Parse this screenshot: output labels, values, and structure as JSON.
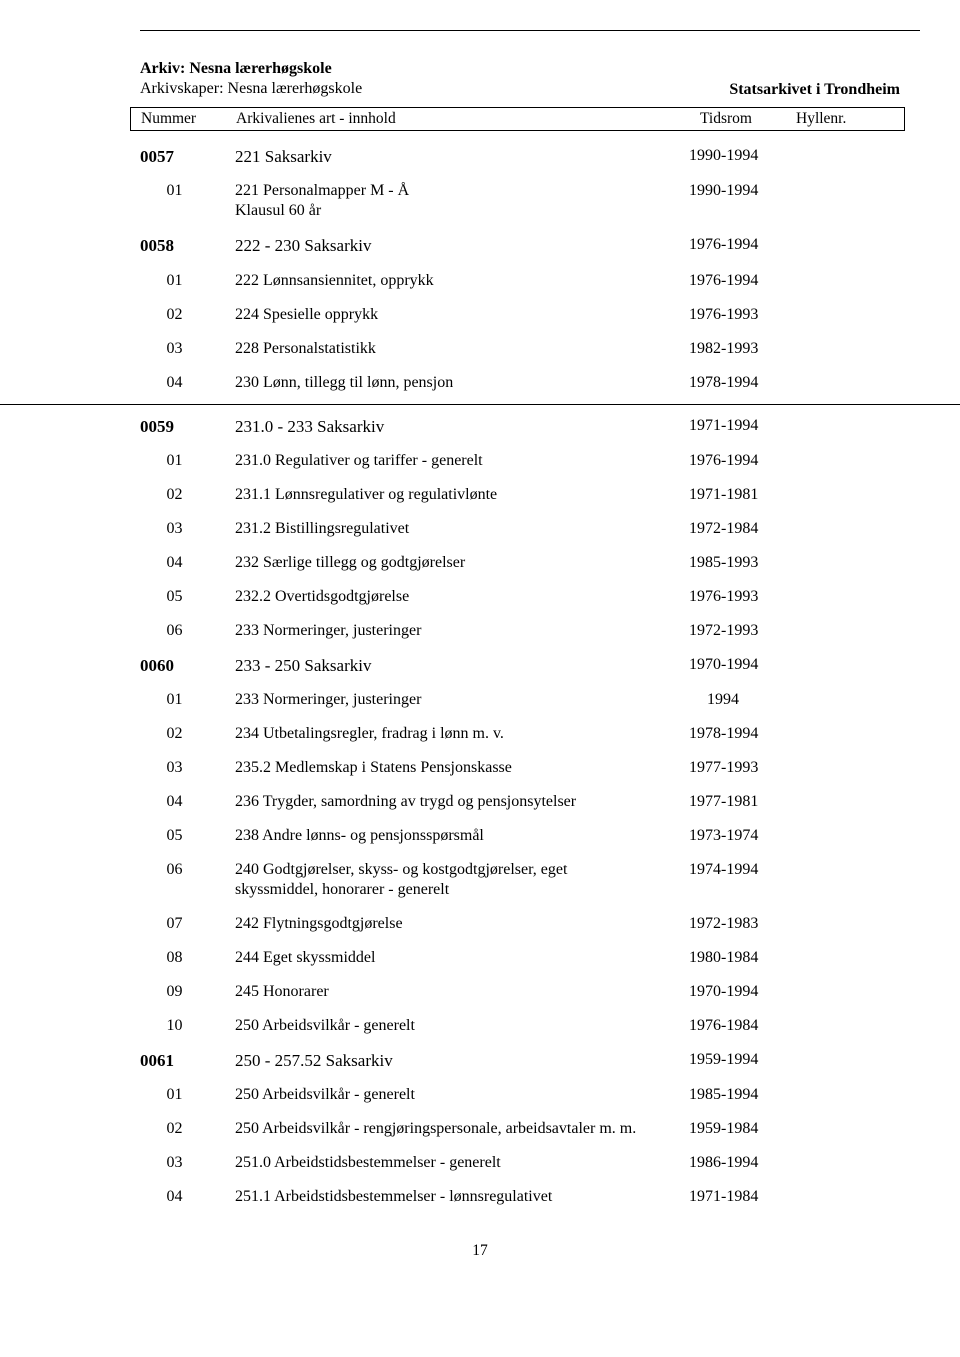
{
  "header": {
    "archive_label": "Arkiv:",
    "archive_value": "Nesna lærerhøgskole",
    "creator_label": "Arkivskaper:",
    "creator_value": "Nesna lærerhøgskole",
    "right": "Statsarkivet i Trondheim"
  },
  "columns": {
    "c1": "Nummer",
    "c2": "Arkivalienes art - innhold",
    "c3": "Tidsrom",
    "c4": "Hyllenr."
  },
  "rows": [
    {
      "type": "group",
      "num": "0057",
      "desc": "221 Saksarkiv",
      "period": "1990-1994"
    },
    {
      "type": "sub",
      "num": "01",
      "desc": "221 Personalmapper M - Å\nKlausul 60 år",
      "period": "1990-1994"
    },
    {
      "type": "group",
      "num": "0058",
      "desc": "222 - 230 Saksarkiv",
      "period": "1976-1994"
    },
    {
      "type": "sub",
      "num": "01",
      "desc": "222 Lønnsansiennitet, opprykk",
      "period": "1976-1994"
    },
    {
      "type": "sub",
      "num": "02",
      "desc": "224 Spesielle opprykk",
      "period": "1976-1993"
    },
    {
      "type": "sub",
      "num": "03",
      "desc": "228 Personalstatistikk",
      "period": "1982-1993"
    },
    {
      "type": "sub",
      "num": "04",
      "desc": "230 Lønn, tillegg til lønn, pensjon",
      "period": "1978-1994"
    },
    {
      "type": "rule"
    },
    {
      "type": "group",
      "num": "0059",
      "desc": "231.0 - 233 Saksarkiv",
      "period": "1971-1994"
    },
    {
      "type": "sub",
      "num": "01",
      "desc": "231.0 Regulativer og tariffer - generelt",
      "period": "1976-1994"
    },
    {
      "type": "sub",
      "num": "02",
      "desc": "231.1 Lønnsregulativer og regulativlønte",
      "period": "1971-1981"
    },
    {
      "type": "sub",
      "num": "03",
      "desc": "231.2 Bistillingsregulativet",
      "period": "1972-1984"
    },
    {
      "type": "sub",
      "num": "04",
      "desc": "232 Særlige tillegg og godtgjørelser",
      "period": "1985-1993"
    },
    {
      "type": "sub",
      "num": "05",
      "desc": "232.2 Overtidsgodtgjørelse",
      "period": "1976-1993"
    },
    {
      "type": "sub",
      "num": "06",
      "desc": "233 Normeringer, justeringer",
      "period": "1972-1993"
    },
    {
      "type": "group",
      "num": "0060",
      "desc": "233 - 250 Saksarkiv",
      "period": "1970-1994"
    },
    {
      "type": "sub",
      "num": "01",
      "desc": "233 Normeringer, justeringer",
      "period": "1994",
      "period_center": true
    },
    {
      "type": "sub",
      "num": "02",
      "desc": "234 Utbetalingsregler, fradrag i lønn m. v.",
      "period": "1978-1994"
    },
    {
      "type": "sub",
      "num": "03",
      "desc": "235.2 Medlemskap i Statens Pensjonskasse",
      "period": "1977-1993"
    },
    {
      "type": "sub",
      "num": "04",
      "desc": "236 Trygder, samordning av trygd og pensjonsytelser",
      "period": "1977-1981"
    },
    {
      "type": "sub",
      "num": "05",
      "desc": "238 Andre lønns- og pensjonsspørsmål",
      "period": "1973-1974"
    },
    {
      "type": "sub",
      "num": "06",
      "desc": "240 Godtgjørelser, skyss- og kostgodtgjørelser, eget skyssmiddel, honorarer - generelt",
      "period": "1974-1994"
    },
    {
      "type": "sub",
      "num": "07",
      "desc": "242 Flytningsgodtgjørelse",
      "period": "1972-1983"
    },
    {
      "type": "sub",
      "num": "08",
      "desc": "244 Eget skyssmiddel",
      "period": "1980-1984"
    },
    {
      "type": "sub",
      "num": "09",
      "desc": "245 Honorarer",
      "period": "1970-1994"
    },
    {
      "type": "sub",
      "num": "10",
      "desc": "250 Arbeidsvilkår - generelt",
      "period": "1976-1984"
    },
    {
      "type": "group",
      "num": "0061",
      "desc": "250 - 257.52 Saksarkiv",
      "period": "1959-1994"
    },
    {
      "type": "sub",
      "num": "01",
      "desc": "250 Arbeidsvilkår - generelt",
      "period": "1985-1994"
    },
    {
      "type": "sub",
      "num": "02",
      "desc": "250 Arbeidsvilkår - rengjøringspersonale, arbeidsavtaler m. m.",
      "period": "1959-1984"
    },
    {
      "type": "sub",
      "num": "03",
      "desc": "251.0 Arbeidstidsbestemmelser - generelt",
      "period": "1986-1994"
    },
    {
      "type": "sub",
      "num": "04",
      "desc": "251.1 Arbeidstidsbestemmelser - lønnsregulativet",
      "period": "1971-1984"
    }
  ],
  "page_number": "17"
}
